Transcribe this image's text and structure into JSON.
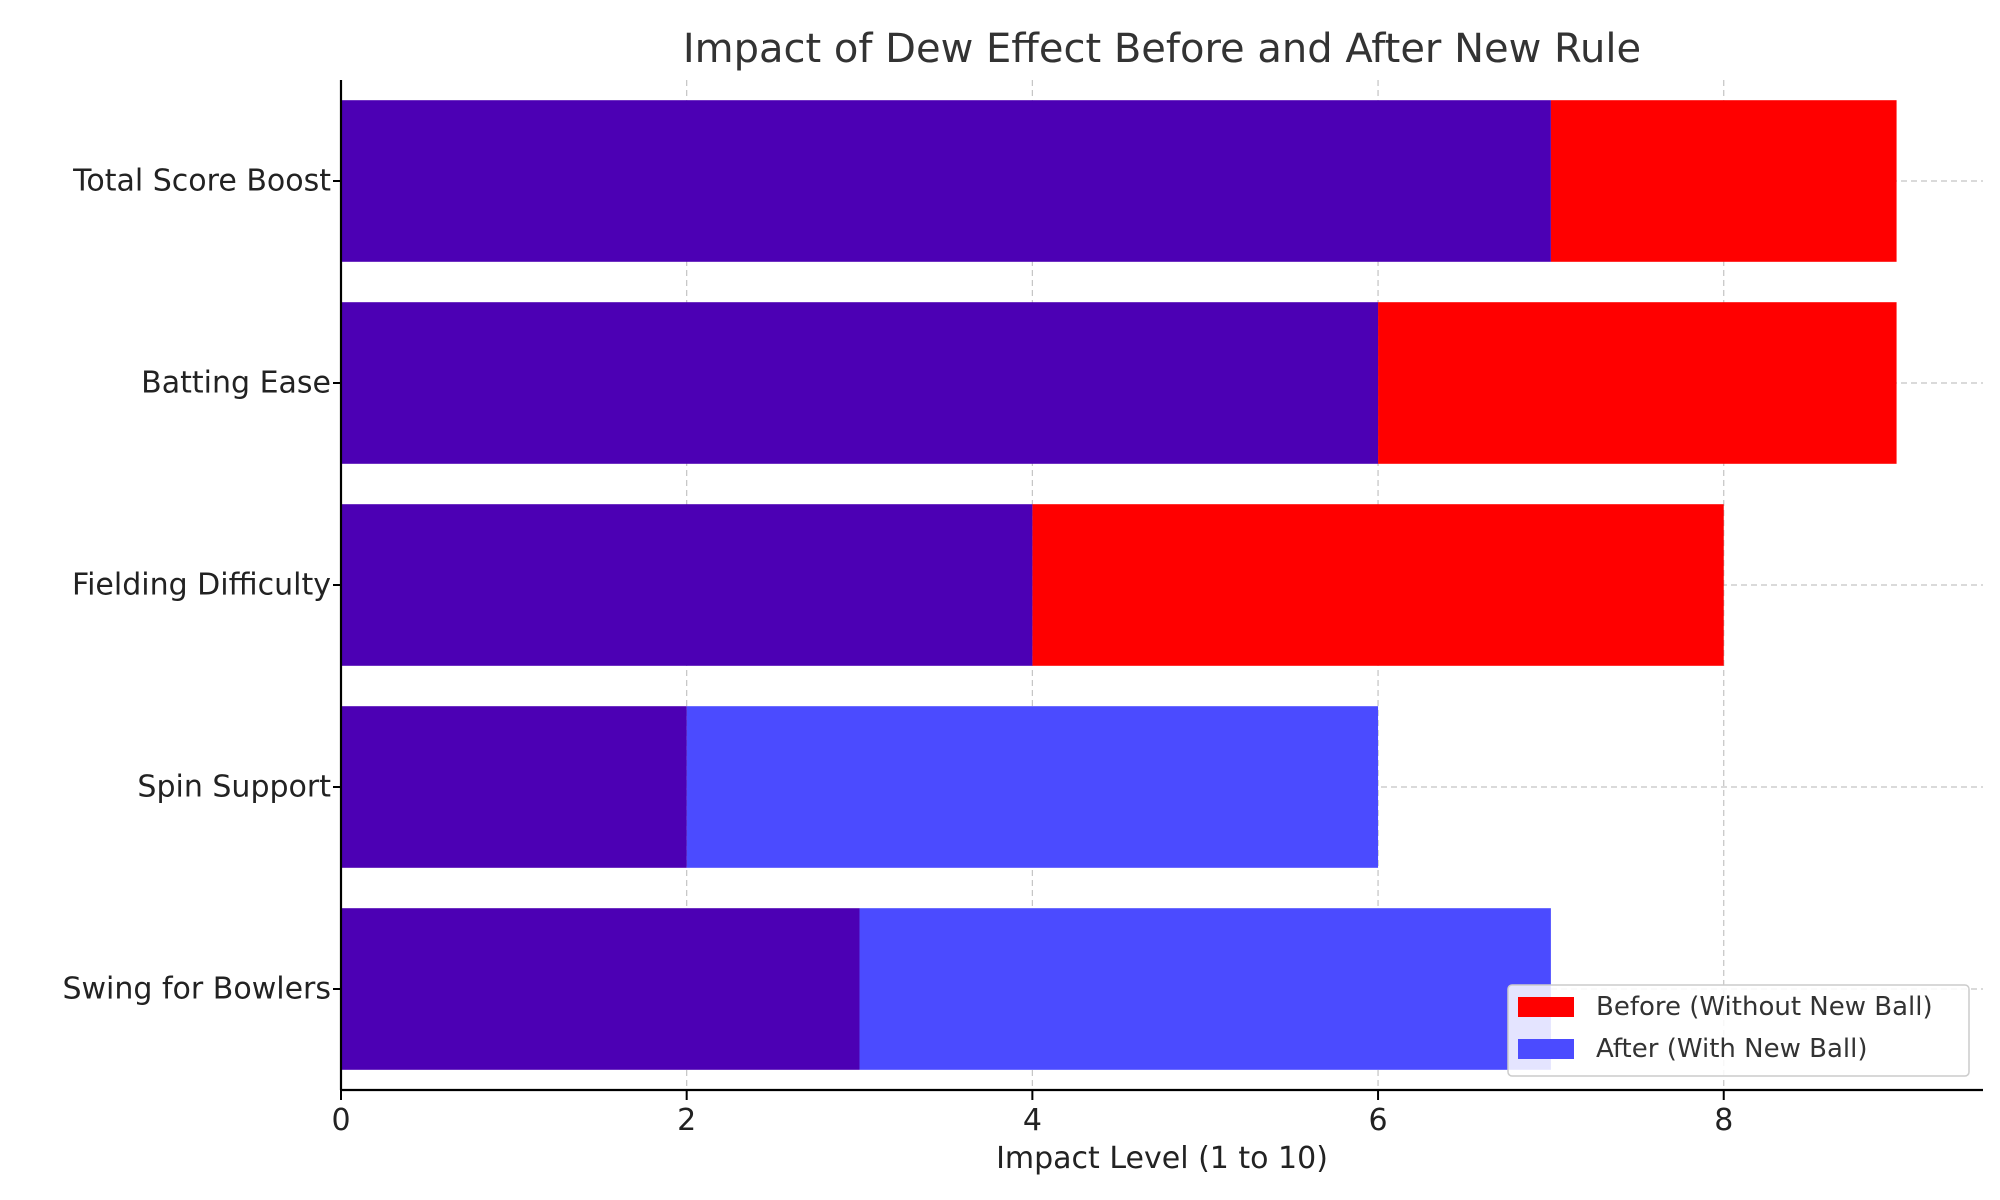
{
  "chart_data": {
    "type": "bar",
    "orientation": "horizontal",
    "title": "Impact of Dew Effect Before and After New Rule",
    "xlabel": "Impact Level (1 to 10)",
    "ylabel": "",
    "xlim": [
      0,
      9.5
    ],
    "xticks": [
      0,
      2,
      4,
      6,
      8
    ],
    "grid": true,
    "legend_position": "bottom-right",
    "categories": [
      "Total Score Boost",
      "Batting Ease",
      "Fielding Difficulty",
      "Spin Support",
      "Swing for Bowlers"
    ],
    "series": [
      {
        "name": "Before (Without New Ball)",
        "color": "#ff0000",
        "values": [
          9,
          9,
          8,
          2,
          3
        ]
      },
      {
        "name": "After (With New Ball)",
        "color": "#4b4bff",
        "values": [
          7,
          6,
          4,
          6,
          7
        ]
      }
    ],
    "overlap_color": "#4c00b4"
  }
}
